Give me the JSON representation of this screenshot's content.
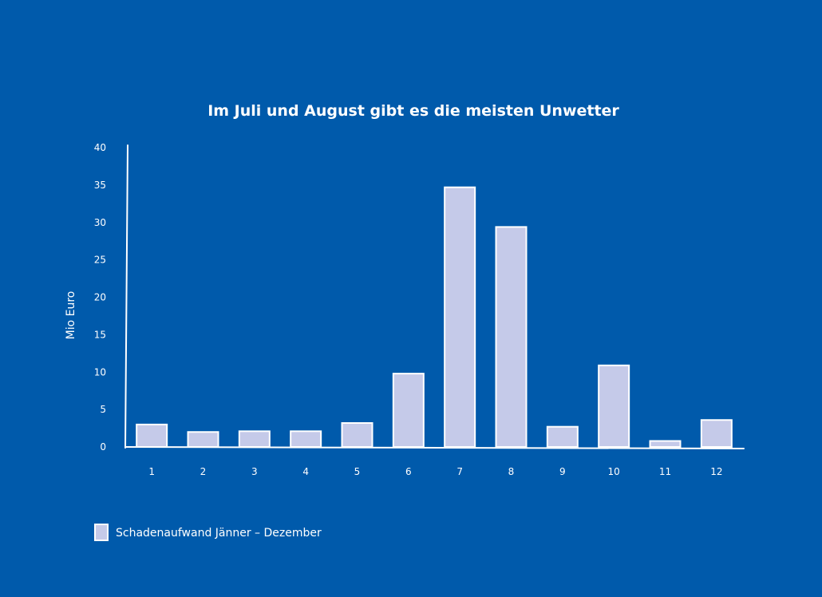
{
  "chart_data": {
    "type": "bar",
    "title": "Im Juli und August gibt es die meisten Unwetter",
    "xlabel": "",
    "ylabel": "Mio Euro",
    "categories": [
      "1",
      "2",
      "3",
      "4",
      "5",
      "6",
      "7",
      "8",
      "9",
      "10",
      "11",
      "12"
    ],
    "series": [
      {
        "name": "Schadenaufwand Jänner – Dezember",
        "values": [
          3,
          2,
          2.1,
          2.1,
          3.2,
          9.8,
          34.7,
          29.4,
          2.7,
          10.9,
          0.8,
          3.6
        ]
      }
    ],
    "ylim": [
      0,
      40
    ],
    "yticks": [
      "0",
      "5",
      "10",
      "15",
      "20",
      "25",
      "30",
      "35",
      "40"
    ],
    "grid": false,
    "legend_position": "bottom-left",
    "colors": {
      "background": "#005aab",
      "bar_fill": "#c5cae9",
      "bar_stroke": "#ffffff",
      "text": "#ffffff"
    }
  }
}
